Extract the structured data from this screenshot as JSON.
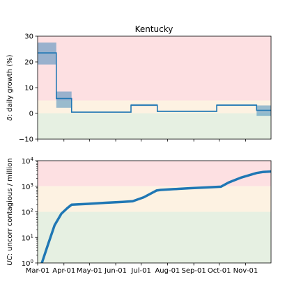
{
  "figure_title": "Kentucky",
  "colors": {
    "line": "#1f77b4",
    "band_fill": "#1f77b4",
    "zone_red": "#fde0e2",
    "zone_yellow": "#fdf2e2",
    "zone_green": "#e6f0e2",
    "axis": "#000000"
  },
  "x_axis": {
    "tick_labels": [
      "Mar-01",
      "Apr-01",
      "May-01",
      "Jun-01",
      "Jul-01",
      "Aug-01",
      "Sep-01",
      "Oct-01",
      "Nov-01"
    ]
  },
  "chart_data": [
    {
      "type": "line",
      "id": "growth",
      "title": "Kentucky",
      "ylabel": "δ: daily growth (%)",
      "ylabel_symbol": "δ",
      "ylabel_text": ": daily growth (%)",
      "xlim": [
        0,
        275
      ],
      "ylim": [
        -10,
        30
      ],
      "x_unit": "days since Mar-01",
      "y_ticks": [
        -10,
        0,
        10,
        20,
        30
      ],
      "y_tick_labels": [
        "−10",
        "0",
        "10",
        "20",
        "30"
      ],
      "zones": [
        {
          "name": "red",
          "from": 5,
          "to": 30
        },
        {
          "name": "yellow",
          "from": 0,
          "to": 5
        },
        {
          "name": "green",
          "from": -10,
          "to": 0
        }
      ],
      "segments": [
        {
          "x0": 0,
          "x1": 22,
          "y": 23.5,
          "lo": 19,
          "hi": 27.5
        },
        {
          "x0": 22,
          "x1": 40,
          "y": 5.8,
          "lo": 2.2,
          "hi": 8.5
        },
        {
          "x0": 40,
          "x1": 110,
          "y": 0.5,
          "lo": 0.5,
          "hi": 0.5
        },
        {
          "x0": 110,
          "x1": 141,
          "y": 3.2,
          "lo": 2.9,
          "hi": 3.6
        },
        {
          "x0": 141,
          "x1": 211,
          "y": 0.8,
          "lo": 0.8,
          "hi": 0.8
        },
        {
          "x0": 211,
          "x1": 258,
          "y": 3.2,
          "lo": 3.0,
          "hi": 3.5
        },
        {
          "x0": 258,
          "x1": 275,
          "y": 1.2,
          "lo": -1.0,
          "hi": 3.1
        }
      ]
    },
    {
      "type": "line",
      "id": "contagious",
      "ylabel": "UC: uncorr contagious / million",
      "ylabel_symbol": "UC",
      "ylabel_text": ": uncorr contagious / million",
      "scale": "log",
      "xlim": [
        0,
        275
      ],
      "ylim": [
        1,
        10000
      ],
      "x_unit": "days since Mar-01",
      "y_ticks": [
        1,
        10,
        100,
        1000,
        10000
      ],
      "y_tick_labels": [
        [
          "10",
          "0"
        ],
        [
          "10",
          "1"
        ],
        [
          "10",
          "2"
        ],
        [
          "10",
          "3"
        ],
        [
          "10",
          "4"
        ]
      ],
      "zones": [
        {
          "name": "red",
          "from": 1000,
          "to": 10000
        },
        {
          "name": "yellow",
          "from": 100,
          "to": 1000
        },
        {
          "name": "green",
          "from": 1,
          "to": 100
        }
      ],
      "series": [
        {
          "x": [
            5,
            12,
            20,
            28,
            35,
            40,
            46,
            60,
            80,
            100,
            112,
            125,
            140,
            145,
            160,
            180,
            200,
            216,
            225,
            240,
            258,
            265,
            275
          ],
          "y": [
            1,
            5,
            30,
            85,
            140,
            190,
            195,
            205,
            225,
            245,
            260,
            370,
            680,
            720,
            770,
            840,
            900,
            960,
            1400,
            2200,
            3300,
            3600,
            3800
          ]
        }
      ]
    }
  ]
}
